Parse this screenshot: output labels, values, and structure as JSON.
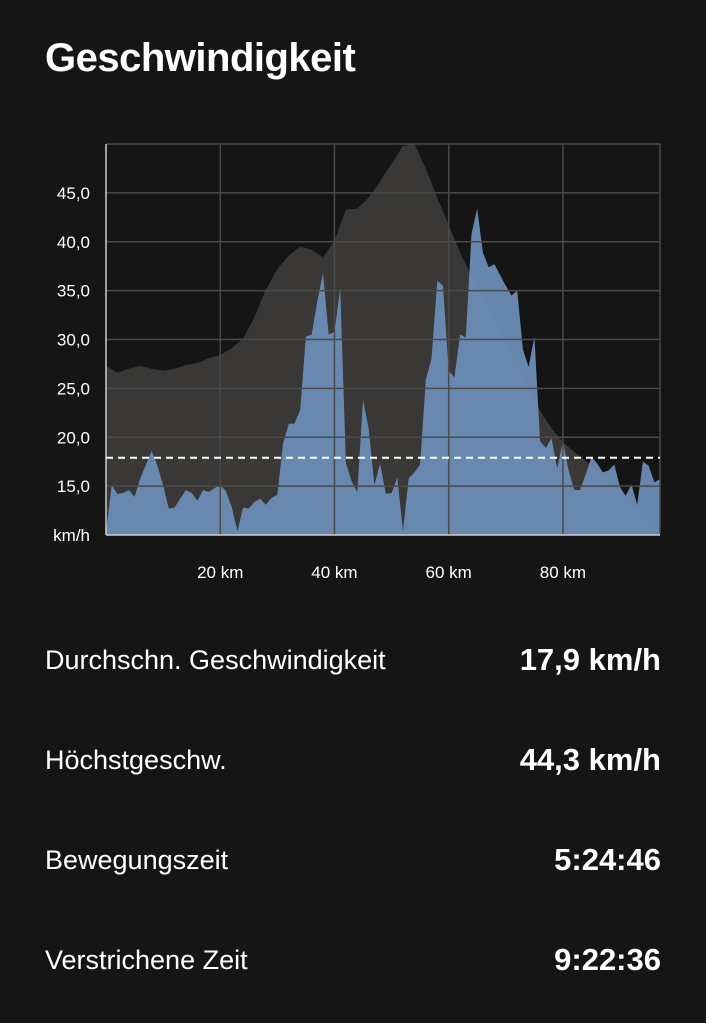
{
  "header": {
    "title": "Geschwindigkeit"
  },
  "colors": {
    "elevation": "#3a3836",
    "speed": "#6b8cb6",
    "speed_highlight": "#6fa2e6",
    "grid": "#4a4a4a",
    "average_line": "#ffffff"
  },
  "chart_data": {
    "type": "area",
    "title": "",
    "xlabel": "",
    "ylabel": "km/h",
    "xlim": [
      0,
      97
    ],
    "ylim": [
      10,
      50
    ],
    "x_ticks": [
      20,
      40,
      60,
      80
    ],
    "x_tick_labels": [
      "20 km",
      "40 km",
      "60 km",
      "80 km"
    ],
    "y_ticks": [
      15,
      20,
      25,
      30,
      35,
      40,
      45
    ],
    "y_tick_labels": [
      "15,0",
      "20,0",
      "25,0",
      "30,0",
      "35,0",
      "40,0",
      "45,0"
    ],
    "unit_label": "km/h",
    "grid": true,
    "average_line": 17.9,
    "series": [
      {
        "role": "elevation-profile",
        "x": [
          0,
          2,
          4,
          6,
          8,
          10,
          12,
          14,
          16,
          18,
          20,
          22,
          24,
          26,
          28,
          30,
          32,
          34,
          36,
          38,
          40,
          42,
          44,
          46,
          48,
          50,
          52,
          54,
          56,
          58,
          60,
          62,
          64,
          66,
          68,
          70,
          72,
          74,
          76,
          78,
          80,
          82,
          84,
          86,
          88,
          90,
          92,
          94,
          96,
          97
        ],
        "values": [
          27.3,
          26.6,
          27.0,
          27.3,
          27.0,
          26.8,
          27.0,
          27.4,
          27.6,
          28.1,
          28.4,
          29.1,
          30.1,
          32.3,
          35.1,
          37.2,
          38.6,
          39.5,
          39.2,
          38.4,
          40.1,
          43.3,
          43.4,
          44.5,
          46.2,
          48.0,
          49.8,
          50.0,
          47.5,
          44.5,
          41.7,
          38.9,
          36.5,
          34.1,
          32.1,
          29.6,
          27.7,
          24.9,
          22.7,
          20.9,
          19.5,
          18.5,
          17.6,
          16.5,
          15.2,
          14.2,
          13.3,
          12.3,
          11.0,
          10.2
        ]
      },
      {
        "role": "speed",
        "x": [
          0,
          1,
          2,
          3,
          4,
          5,
          6,
          7,
          8,
          9,
          10,
          11,
          12,
          13,
          14,
          15,
          16,
          17,
          18,
          19,
          20,
          21,
          22,
          23,
          24,
          25,
          26,
          27,
          28,
          29,
          30,
          31,
          32,
          33,
          34,
          35,
          36,
          37,
          38,
          39,
          40,
          41,
          42,
          43,
          44,
          45,
          46,
          47,
          48,
          49,
          50,
          51,
          52,
          53,
          54,
          55,
          56,
          57,
          58,
          59,
          60,
          61,
          62,
          63,
          64,
          65,
          66,
          67,
          68,
          69,
          70,
          71,
          72,
          73,
          74,
          75,
          76,
          77,
          78,
          79,
          80,
          81,
          82,
          83,
          84,
          85,
          86,
          87,
          88,
          89,
          90,
          91,
          92,
          93,
          94,
          95,
          96,
          97
        ],
        "values": [
          10.2,
          15.1,
          14.2,
          14.3,
          14.6,
          13.9,
          15.8,
          17.2,
          18.6,
          17.1,
          15.1,
          12.7,
          12.8,
          13.7,
          14.6,
          14.3,
          13.5,
          14.6,
          14.4,
          14.8,
          15.1,
          14.5,
          12.9,
          10.4,
          12.8,
          12.7,
          13.4,
          13.7,
          13.1,
          13.8,
          14.1,
          19.4,
          21.4,
          21.4,
          22.8,
          30.3,
          30.5,
          33.9,
          36.8,
          30.5,
          30.8,
          35.3,
          17.4,
          15.5,
          14.4,
          23.8,
          20.9,
          15.1,
          17.3,
          14.2,
          14.3,
          15.9,
          10.4,
          15.8,
          16.4,
          17.2,
          25.9,
          28.0,
          36.0,
          35.5,
          26.8,
          26.1,
          30.5,
          30.2,
          40.8,
          43.4,
          38.9,
          37.4,
          37.7,
          36.6,
          35.5,
          34.5,
          35.0,
          29.0,
          27.2,
          30.3,
          19.6,
          18.9,
          19.9,
          16.8,
          19.6,
          16.6,
          14.6,
          14.6,
          16.2,
          18.0,
          17.3,
          16.4,
          16.6,
          17.2,
          14.9,
          14.0,
          15.2,
          13.1,
          17.5,
          17.1,
          15.4,
          15.7
        ]
      }
    ]
  },
  "stats": [
    {
      "label": "Durchschn. Geschwindigkeit",
      "value": "17,9 km/h"
    },
    {
      "label": "Höchstgeschw.",
      "value": "44,3 km/h"
    },
    {
      "label": "Bewegungszeit",
      "value": "5:24:46"
    },
    {
      "label": "Verstrichene Zeit",
      "value": "9:22:36"
    }
  ]
}
